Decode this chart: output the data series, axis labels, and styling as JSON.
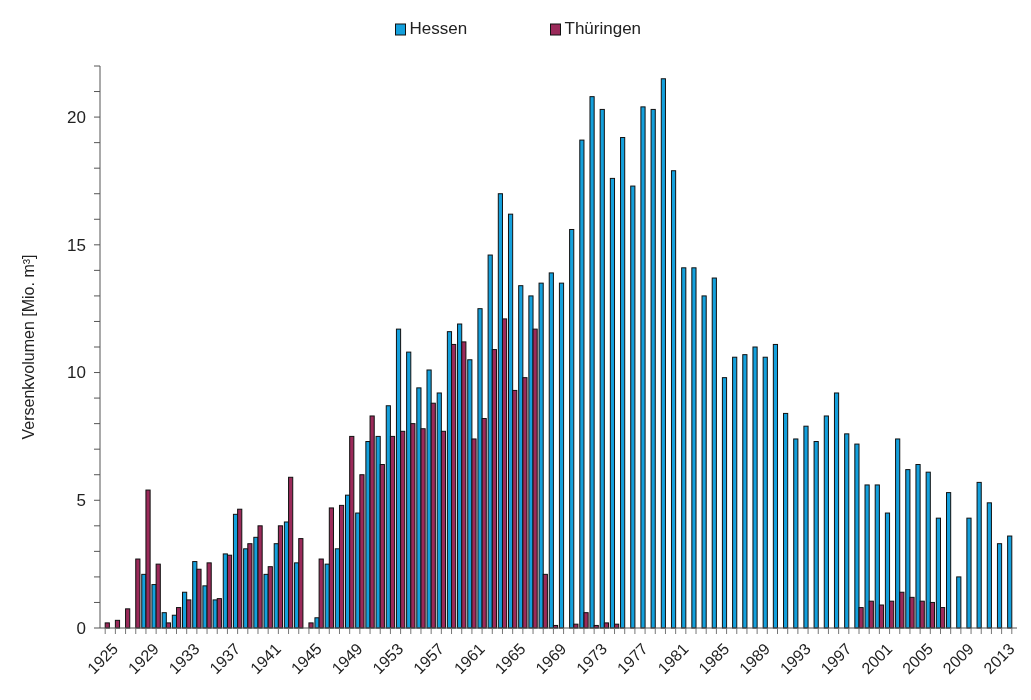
{
  "chart_data": {
    "type": "bar",
    "ylabel": "Versenkvolumen [Mio. m³]",
    "categories": [
      "1925",
      null,
      null,
      null,
      "1929",
      null,
      null,
      null,
      "1933",
      null,
      null,
      null,
      "1937",
      null,
      null,
      null,
      "1941",
      null,
      null,
      null,
      "1945",
      null,
      null,
      null,
      "1949",
      null,
      null,
      null,
      "1953",
      null,
      null,
      null,
      "1957",
      null,
      null,
      null,
      "1961",
      null,
      null,
      null,
      "1965",
      null,
      null,
      null,
      "1969",
      null,
      null,
      null,
      "1973",
      null,
      null,
      null,
      "1977",
      null,
      null,
      null,
      "1981",
      null,
      null,
      null,
      "1985",
      null,
      null,
      null,
      "1989",
      null,
      null,
      null,
      "1993",
      null,
      null,
      null,
      "1997",
      null,
      null,
      null,
      "2001",
      null,
      null,
      null,
      "2005",
      null,
      null,
      null,
      "2009",
      null,
      null,
      null,
      "2013",
      null
    ],
    "series": [
      {
        "name": "Hessen",
        "color": "#14a0dc",
        "values": [
          0,
          0,
          0,
          null,
          2.1,
          1.7,
          0.6,
          0.5,
          1.4,
          2.6,
          1.65,
          1.1,
          2.9,
          4.45,
          3.1,
          3.55,
          2.1,
          3.3,
          4.15,
          2.55,
          null,
          0.4,
          2.5,
          3.1,
          5.2,
          4.5,
          7.3,
          7.5,
          8.7,
          11.7,
          10.8,
          9.4,
          10.1,
          9.2,
          11.6,
          11.9,
          10.5,
          12.5,
          14.6,
          17.0,
          16.2,
          13.4,
          13.0,
          13.5,
          13.9,
          13.5,
          15.6,
          19.1,
          20.8,
          20.3,
          17.6,
          19.2,
          17.3,
          20.4,
          20.3,
          21.5,
          17.9,
          14.1,
          14.1,
          13.0,
          13.7,
          9.8,
          10.6,
          10.7,
          11.0,
          10.6,
          11.1,
          8.4,
          7.4,
          7.9,
          7.3,
          8.3,
          9.2,
          7.6,
          7.2,
          5.6,
          5.6,
          4.5,
          7.4,
          6.2,
          6.4,
          6.1,
          4.3,
          5.3,
          2.0,
          4.3,
          5.7,
          4.9,
          3.3,
          3.6
        ]
      },
      {
        "name": "Thüringen",
        "color": "#9b2a5a",
        "values": [
          0.2,
          0.3,
          0.75,
          2.7,
          5.4,
          2.5,
          0.2,
          0.8,
          1.1,
          2.3,
          2.55,
          1.15,
          2.85,
          4.65,
          3.3,
          4.0,
          2.4,
          4.0,
          5.9,
          3.5,
          0.2,
          2.7,
          4.7,
          4.8,
          7.5,
          6.0,
          8.3,
          6.4,
          7.5,
          7.7,
          8.0,
          7.8,
          8.8,
          7.7,
          11.1,
          11.2,
          7.4,
          8.2,
          10.9,
          12.1,
          9.3,
          9.8,
          11.7,
          2.1,
          0.1,
          0,
          0.15,
          0.6,
          0.1,
          0.2,
          0.15,
          0,
          0,
          0,
          0,
          0,
          0,
          0,
          0,
          0,
          0,
          0,
          0,
          0,
          0,
          0,
          0,
          0,
          0,
          0,
          0,
          0,
          0,
          0,
          0.8,
          1.05,
          0.9,
          1.05,
          1.4,
          1.2,
          1.05,
          1.0,
          0.8,
          0,
          0,
          0,
          0,
          0,
          0,
          0
        ]
      }
    ],
    "ylim": [
      0,
      22
    ],
    "yticks": [
      0,
      {
        "value": 1,
        "label": null
      },
      {
        "value": 2,
        "label": null
      },
      {
        "value": 3,
        "label": null
      },
      {
        "value": 4,
        "label": null
      },
      5,
      {
        "value": 6,
        "label": null
      },
      {
        "value": 7,
        "label": null
      },
      {
        "value": 8,
        "label": null
      },
      {
        "value": 9,
        "label": null
      },
      10,
      {
        "value": 11,
        "label": null
      },
      {
        "value": 12,
        "label": null
      },
      {
        "value": 13,
        "label": null
      },
      {
        "value": 14,
        "label": null
      },
      15,
      {
        "value": 16,
        "label": null
      },
      {
        "value": 17,
        "label": null
      },
      {
        "value": 18,
        "label": null
      },
      {
        "value": 19,
        "label": null
      },
      20,
      {
        "value": 21,
        "label": null
      },
      {
        "value": 22,
        "label": null
      }
    ],
    "legend": "top",
    "grid": false
  }
}
